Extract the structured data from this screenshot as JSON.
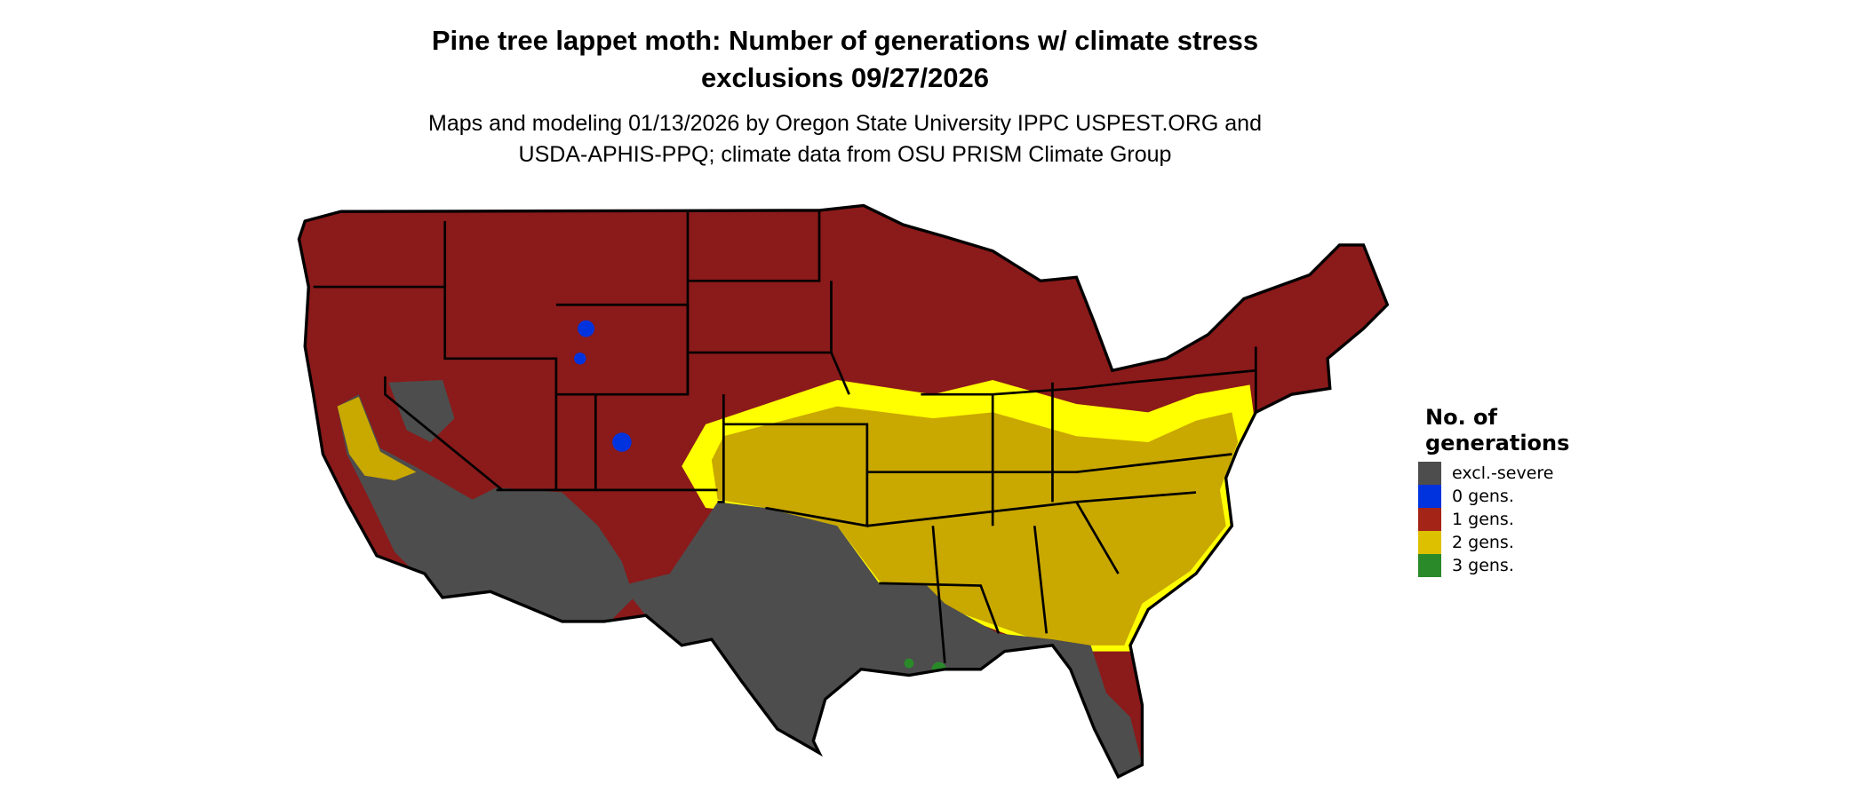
{
  "title": {
    "line1": "Pine tree lappet moth: Number of generations w/ climate stress",
    "line2": "exclusions 09/27/2026"
  },
  "subtitle": {
    "line1": "Maps and modeling 01/13/2026 by Oregon State University IPPC USPEST.ORG and",
    "line2": "USDA-APHIS-PPQ; climate data from OSU PRISM Climate Group"
  },
  "legend": {
    "title_line1": "No. of",
    "title_line2": "generations",
    "items": [
      {
        "label": "excl.-severe",
        "color": "#4d4d4d"
      },
      {
        "label": "0 gens.",
        "color": "#0033dd"
      },
      {
        "label": "1 gens.",
        "color": "#a52418"
      },
      {
        "label": "2 gens.",
        "color": "#ddc000"
      },
      {
        "label": "3 gens.",
        "color": "#2a8a2a"
      }
    ]
  },
  "map": {
    "region": "Contiguous United States",
    "colors": {
      "one_gen": "#8b1a1a",
      "two_gen": "#c9a800",
      "two_gen_fringe": "#ffff00",
      "excluded": "#4d4d4d",
      "zero_gen": "#0033dd",
      "three_gen": "#2a8a2a",
      "border": "#000000"
    }
  }
}
